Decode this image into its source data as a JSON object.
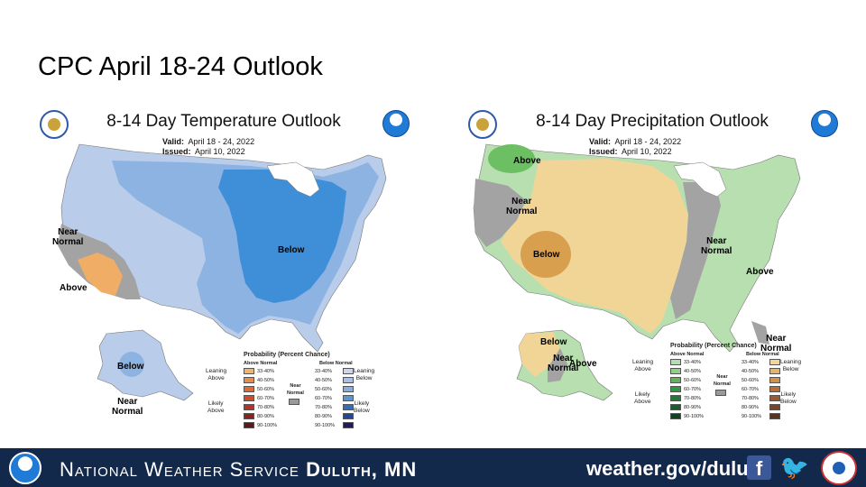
{
  "slide": {
    "title": "CPC April 18-24 Outlook"
  },
  "temp": {
    "title": "8-14 Day Temperature Outlook",
    "valid_label": "Valid:",
    "valid": "April 18 - 24, 2022",
    "issued_label": "Issued:",
    "issued": "April 10, 2022",
    "labels": {
      "near_normal": "Near\nNormal",
      "above": "Above",
      "below": "Below",
      "alaska_below": "Below",
      "alaska_near_normal": "Near\nNormal"
    },
    "legend": {
      "title": "Probability (Percent Chance)",
      "above_header": "Above Normal",
      "below_header": "Below Normal",
      "ranges": [
        "33-40%",
        "40-50%",
        "50-60%",
        "60-70%",
        "70-80%",
        "80-90%",
        "90-100%"
      ],
      "leaning_above": "Leaning\nAbove",
      "likely_above": "Likely\nAbove",
      "leaning_below": "Leaning\nBelow",
      "likely_below": "Likely\nBelow",
      "near_normal": "Near\nNormal"
    },
    "colors": {
      "above": [
        "#f2b36b",
        "#e98b4b",
        "#e06a36",
        "#d24a2c",
        "#b5312a",
        "#8c2322",
        "#5c1a18"
      ],
      "below": [
        "#c9d6ee",
        "#a9c1e6",
        "#86aee0",
        "#5b96d9",
        "#2f6fc2",
        "#25469a",
        "#211a5e"
      ]
    }
  },
  "precip": {
    "title": "8-14 Day Precipitation Outlook",
    "valid_label": "Valid:",
    "valid": "April 18 - 24, 2022",
    "issued_label": "Issued:",
    "issued": "April 10, 2022",
    "labels": {
      "above_nw": "Above",
      "near_normal_w": "Near\nNormal",
      "below": "Below",
      "near_normal_c": "Near\nNormal",
      "above_e": "Above",
      "near_normal_fl": "Near\nNormal",
      "ak_below": "Below",
      "ak_near": "Near\nNormal",
      "ak_above": "Above"
    },
    "legend": {
      "title": "Probability (Percent Chance)",
      "above_header": "Above Normal",
      "below_header": "Below Normal",
      "ranges": [
        "33-40%",
        "40-50%",
        "50-60%",
        "60-70%",
        "70-80%",
        "80-90%",
        "90-100%"
      ],
      "leaning_above": "Leaning\nAbove",
      "likely_above": "Likely\nAbove",
      "leaning_below": "Leaning\nBelow",
      "likely_below": "Likely\nBelow",
      "near_normal": "Near\nNormal"
    },
    "colors": {
      "above": [
        "#b4deb0",
        "#8fcf86",
        "#5eb55a",
        "#2f9a43",
        "#1f7a36",
        "#17602c",
        "#0e4220"
      ],
      "below": [
        "#f2d597",
        "#e5b36a",
        "#d39147",
        "#b86f37",
        "#9a5a35",
        "#7a4628",
        "#59331e"
      ]
    }
  },
  "footer": {
    "org": "National Weather Service",
    "office": "Duluth, MN",
    "url": "weather.gov/duluth",
    "facebook_glyph": "f",
    "twitter_glyph": "🐦"
  }
}
